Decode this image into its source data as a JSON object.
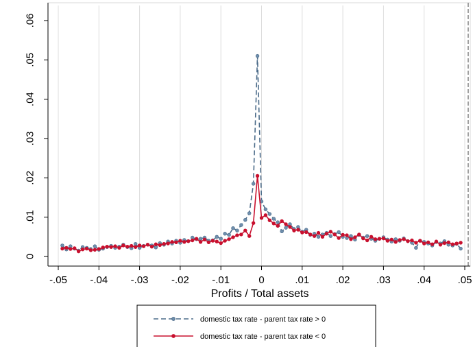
{
  "chart_data": {
    "type": "line",
    "xlabel": "Profits / Total assets",
    "ylabel": "",
    "xlim": [
      -0.05,
      0.05
    ],
    "ylim": [
      0,
      0.06
    ],
    "x_ticks": [
      {
        "value": -0.05,
        "label": "-.05"
      },
      {
        "value": -0.04,
        "label": "-.04"
      },
      {
        "value": -0.03,
        "label": "-.03"
      },
      {
        "value": -0.02,
        "label": "-.02"
      },
      {
        "value": -0.01,
        "label": "-.01"
      },
      {
        "value": 0,
        "label": "0"
      },
      {
        "value": 0.01,
        "label": ".01"
      },
      {
        "value": 0.02,
        "label": ".02"
      },
      {
        "value": 0.03,
        "label": ".03"
      },
      {
        "value": 0.04,
        "label": ".04"
      },
      {
        "value": 0.05,
        "label": ".05"
      }
    ],
    "y_ticks": [
      {
        "value": 0,
        "label": "0"
      },
      {
        "value": 0.01,
        "label": ".01"
      },
      {
        "value": 0.02,
        "label": ".02"
      },
      {
        "value": 0.03,
        "label": ".03"
      },
      {
        "value": 0.04,
        "label": ".04"
      },
      {
        "value": 0.05,
        "label": ".05"
      },
      {
        "value": 0.06,
        "label": ".06"
      }
    ],
    "vertical_grid": true,
    "reference_line": {
      "x": 0.05,
      "style": "dashed"
    },
    "legend_position": "bottom",
    "series": [
      {
        "name": "domestic tax rate - parent tax rate > 0",
        "color": "#4a6a88",
        "marker_color": "#6f8fad",
        "line_style": "dashed",
        "x": [
          -0.049,
          -0.048,
          -0.047,
          -0.046,
          -0.045,
          -0.044,
          -0.043,
          -0.042,
          -0.041,
          -0.04,
          -0.039,
          -0.038,
          -0.037,
          -0.036,
          -0.035,
          -0.034,
          -0.033,
          -0.032,
          -0.031,
          -0.03,
          -0.029,
          -0.028,
          -0.027,
          -0.026,
          -0.025,
          -0.024,
          -0.023,
          -0.022,
          -0.021,
          -0.02,
          -0.019,
          -0.018,
          -0.017,
          -0.016,
          -0.015,
          -0.014,
          -0.013,
          -0.012,
          -0.011,
          -0.01,
          -0.009,
          -0.008,
          -0.007,
          -0.006,
          -0.005,
          -0.004,
          -0.003,
          -0.002,
          -0.001,
          0.0,
          0.001,
          0.002,
          0.003,
          0.004,
          0.005,
          0.006,
          0.007,
          0.008,
          0.009,
          0.01,
          0.011,
          0.012,
          0.013,
          0.014,
          0.015,
          0.016,
          0.017,
          0.018,
          0.019,
          0.02,
          0.021,
          0.022,
          0.023,
          0.024,
          0.025,
          0.026,
          0.027,
          0.028,
          0.029,
          0.03,
          0.031,
          0.032,
          0.033,
          0.034,
          0.035,
          0.036,
          0.037,
          0.038,
          0.039,
          0.04,
          0.041,
          0.042,
          0.043,
          0.044,
          0.045,
          0.046,
          0.047,
          0.048,
          0.049
        ],
        "values": [
          0.0028,
          0.0018,
          0.0026,
          0.002,
          0.0015,
          0.0024,
          0.0022,
          0.0019,
          0.0026,
          0.0017,
          0.002,
          0.0024,
          0.0027,
          0.0022,
          0.0025,
          0.003,
          0.0024,
          0.0021,
          0.0032,
          0.0022,
          0.0027,
          0.003,
          0.0028,
          0.0023,
          0.0034,
          0.003,
          0.0038,
          0.0033,
          0.004,
          0.0035,
          0.0042,
          0.0039,
          0.0048,
          0.0044,
          0.0045,
          0.0048,
          0.004,
          0.0041,
          0.005,
          0.0045,
          0.0058,
          0.0055,
          0.0072,
          0.0066,
          0.008,
          0.0093,
          0.011,
          0.0185,
          0.051,
          0.014,
          0.012,
          0.0108,
          0.0096,
          0.0087,
          0.0064,
          0.0073,
          0.0082,
          0.007,
          0.0075,
          0.0063,
          0.0068,
          0.0055,
          0.0058,
          0.005,
          0.0056,
          0.006,
          0.0052,
          0.0057,
          0.0062,
          0.005,
          0.0047,
          0.0052,
          0.0043,
          0.0055,
          0.0048,
          0.0052,
          0.0045,
          0.004,
          0.0045,
          0.0049,
          0.0043,
          0.0038,
          0.0044,
          0.004,
          0.0046,
          0.0039,
          0.0035,
          0.0022,
          0.004,
          0.0037,
          0.0033,
          0.0028,
          0.0037,
          0.0033,
          0.0039,
          0.003,
          0.0028,
          0.0032,
          0.002
        ]
      },
      {
        "name": "domestic tax rate - parent tax rate < 0",
        "color": "#c8102e",
        "marker_color": "#c8102e",
        "line_style": "solid",
        "x": [
          -0.049,
          -0.048,
          -0.047,
          -0.046,
          -0.045,
          -0.044,
          -0.043,
          -0.042,
          -0.041,
          -0.04,
          -0.039,
          -0.038,
          -0.037,
          -0.036,
          -0.035,
          -0.034,
          -0.033,
          -0.032,
          -0.031,
          -0.03,
          -0.029,
          -0.028,
          -0.027,
          -0.026,
          -0.025,
          -0.024,
          -0.023,
          -0.022,
          -0.021,
          -0.02,
          -0.019,
          -0.018,
          -0.017,
          -0.016,
          -0.015,
          -0.014,
          -0.013,
          -0.012,
          -0.011,
          -0.01,
          -0.009,
          -0.008,
          -0.007,
          -0.006,
          -0.005,
          -0.004,
          -0.003,
          -0.002,
          -0.001,
          0.0,
          0.001,
          0.002,
          0.003,
          0.004,
          0.005,
          0.006,
          0.007,
          0.008,
          0.009,
          0.01,
          0.011,
          0.012,
          0.013,
          0.014,
          0.015,
          0.016,
          0.017,
          0.018,
          0.019,
          0.02,
          0.021,
          0.022,
          0.023,
          0.024,
          0.025,
          0.026,
          0.027,
          0.028,
          0.029,
          0.03,
          0.031,
          0.032,
          0.033,
          0.034,
          0.035,
          0.036,
          0.037,
          0.038,
          0.039,
          0.04,
          0.041,
          0.042,
          0.043,
          0.044,
          0.045,
          0.046,
          0.047,
          0.048,
          0.049
        ],
        "values": [
          0.002,
          0.0022,
          0.0019,
          0.0021,
          0.0013,
          0.0018,
          0.002,
          0.0016,
          0.0017,
          0.0019,
          0.0023,
          0.0025,
          0.0024,
          0.0026,
          0.0022,
          0.0028,
          0.0025,
          0.0027,
          0.0024,
          0.0028,
          0.0026,
          0.003,
          0.0025,
          0.0031,
          0.0029,
          0.0032,
          0.0033,
          0.0037,
          0.0036,
          0.004,
          0.0037,
          0.0039,
          0.0041,
          0.0045,
          0.0037,
          0.0043,
          0.0036,
          0.004,
          0.0038,
          0.0034,
          0.004,
          0.0044,
          0.0049,
          0.0054,
          0.0056,
          0.0066,
          0.0052,
          0.0085,
          0.0205,
          0.0098,
          0.0105,
          0.0092,
          0.0084,
          0.0078,
          0.009,
          0.0082,
          0.0075,
          0.0066,
          0.0068,
          0.0061,
          0.0062,
          0.0056,
          0.0052,
          0.006,
          0.005,
          0.0058,
          0.0063,
          0.0056,
          0.0047,
          0.0055,
          0.0054,
          0.0044,
          0.0049,
          0.0056,
          0.0046,
          0.0041,
          0.005,
          0.0044,
          0.0045,
          0.0046,
          0.004,
          0.0043,
          0.0037,
          0.0042,
          0.0044,
          0.0039,
          0.0041,
          0.0035,
          0.004,
          0.0033,
          0.0036,
          0.0031,
          0.0038,
          0.003,
          0.0034,
          0.0036,
          0.0031,
          0.0033,
          0.0035
        ]
      }
    ]
  }
}
